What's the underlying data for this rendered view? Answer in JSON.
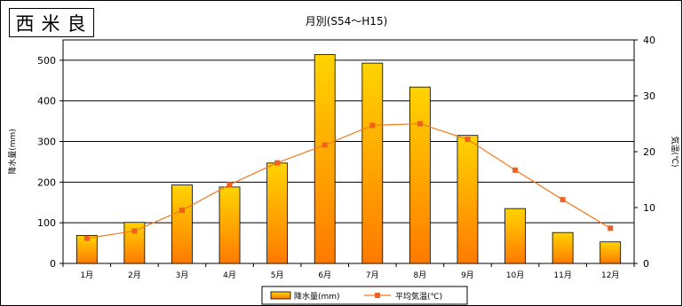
{
  "station": "西米良",
  "chart_data": {
    "type": "bar",
    "title": "月別(S54〜H15)",
    "categories": [
      "1月",
      "2月",
      "3月",
      "4月",
      "5月",
      "6月",
      "7月",
      "8月",
      "9月",
      "10月",
      "11月",
      "12月"
    ],
    "series": [
      {
        "name": "降水量(mm)",
        "kind": "bar",
        "axis": "left",
        "values": [
          69,
          101,
          193,
          188,
          247,
          514,
          493,
          434,
          315,
          135,
          76,
          53
        ]
      },
      {
        "name": "平均気温(℃)",
        "kind": "line",
        "axis": "right",
        "values": [
          4.5,
          5.8,
          9.5,
          14.1,
          18.0,
          21.2,
          24.7,
          25.0,
          22.2,
          16.7,
          11.4,
          6.3
        ]
      }
    ],
    "ylabel": "降水量(mm)",
    "y2label": "気温(℃)",
    "ylim": [
      0,
      550
    ],
    "yticks": [
      "0",
      "100",
      "200",
      "300",
      "400",
      "500"
    ],
    "y2lim": [
      0,
      40
    ],
    "y2ticks": [
      "0",
      "10",
      "20",
      "30",
      "40"
    ],
    "grid": true,
    "legend": "bottom",
    "colors": {
      "bar_top": "#FFD400",
      "bar_bottom": "#FF7A00",
      "line": "#F07A20",
      "marker": "#F06020"
    }
  }
}
